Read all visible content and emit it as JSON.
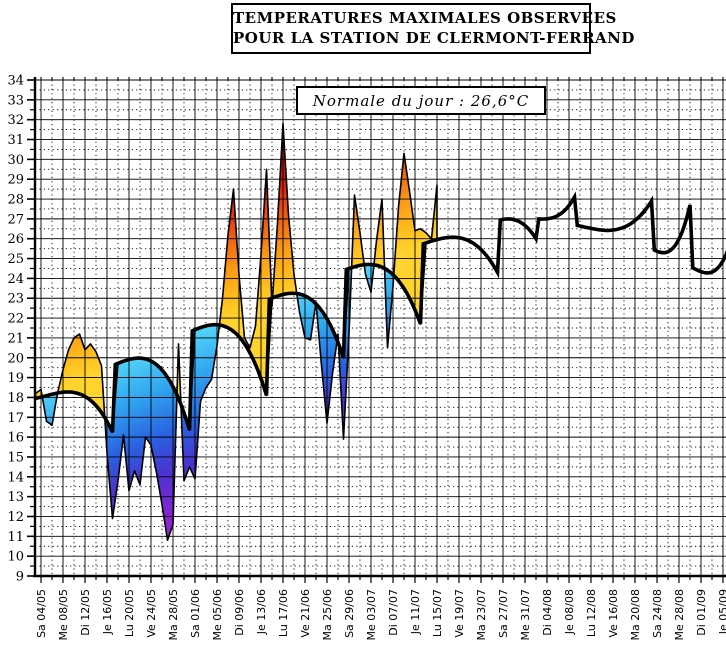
{
  "title": {
    "line1": "TEMPERATURES MAXIMALES OBSERVEES",
    "line2": "POUR LA STATION DE CLERMONT-FERRAND"
  },
  "annotation": {
    "text": "Normale du jour : 26,6°C"
  },
  "chart_data": {
    "type": "area",
    "title": "TEMPERATURES MAXIMALES OBSERVEES POUR LA STATION DE CLERMONT-FERRAND",
    "ylim": [
      9,
      34
    ],
    "grid": "on",
    "normale_du_jour_c": 26.6,
    "y_axis": {
      "tick_labels": [
        "34",
        "33",
        "32",
        "31",
        "30",
        "29",
        "28",
        "27",
        "26",
        "25",
        "24",
        "23",
        "22",
        "21",
        "20",
        "19",
        "18",
        "17",
        "16",
        "15",
        "14",
        "13",
        "12",
        "11",
        "10",
        "9"
      ],
      "tick_values": [
        34,
        33,
        32,
        31,
        30,
        29,
        28,
        27,
        26,
        25,
        24,
        23,
        22,
        21,
        20,
        19,
        18,
        17,
        16,
        15,
        14,
        13,
        12,
        11,
        10,
        9
      ]
    },
    "x_axis": {
      "tick_labels": [
        "Sa 04/05",
        "Me 08/05",
        "Di 12/05",
        "Je 16/05",
        "Lu 20/05",
        "Ve 24/05",
        "Ma 28/05",
        "Sa 01/06",
        "Me 05/06",
        "Di 09/06",
        "Je 13/06",
        "Lu 17/06",
        "Ve 21/06",
        "Ma 25/06",
        "Sa 29/06",
        "Me 03/07",
        "Di 07/07",
        "Je 11/07",
        "Lu 15/07",
        "Ve 19/07",
        "Ma 23/07",
        "Sa 27/07",
        "Me 31/07",
        "Di 04/08",
        "Je 08/08",
        "Lu 12/08",
        "Ve 16/08",
        "Ma 20/08",
        "Sa 24/08",
        "Me 28/08",
        "Di 01/09",
        "Je 05/09"
      ],
      "tick_day_indices": [
        1,
        5,
        9,
        13,
        17,
        21,
        25,
        29,
        33,
        37,
        41,
        45,
        49,
        53,
        57,
        61,
        65,
        69,
        73,
        77,
        81,
        85,
        89,
        93,
        97,
        101,
        105,
        109,
        113,
        117,
        121,
        125
      ],
      "range_start": "03/05",
      "range_end": "05/09"
    },
    "observed": {
      "name": "Temperature maximale observee",
      "start_date": "03/05",
      "cadence": "daily",
      "values": [
        18.2,
        18.4,
        16.8,
        16.6,
        18.2,
        19.4,
        20.4,
        21.0,
        21.2,
        20.4,
        20.7,
        20.3,
        19.6,
        15.2,
        11.9,
        13.8,
        16.1,
        13.3,
        14.3,
        13.6,
        16.0,
        15.6,
        14.2,
        12.6,
        10.8,
        11.6,
        20.7,
        13.8,
        14.5,
        13.9,
        17.8,
        18.5,
        18.9,
        20.6,
        23.0,
        26.2,
        28.5,
        24.2,
        21.0,
        20.5,
        21.6,
        25.2,
        29.5,
        22.6,
        26.8,
        31.8,
        27.2,
        24.2,
        22.3,
        21.0,
        20.9,
        22.8,
        19.6,
        16.7,
        19.2,
        21.2,
        15.9,
        21.2,
        28.2,
        26.3,
        24.2,
        23.3,
        25.9,
        28.0,
        20.5,
        23.6,
        27.6,
        30.3,
        28.4,
        26.4,
        26.5,
        26.3,
        26.0,
        28.7
      ]
    },
    "normal_curve": {
      "name": "Normale",
      "day_indices": [
        0,
        14,
        28,
        42,
        56,
        70,
        84,
        91,
        98,
        112,
        119,
        126
      ],
      "values": [
        17.95,
        19.6,
        21.3,
        22.9,
        24.4,
        25.7,
        26.9,
        27.0,
        26.7,
        25.5,
        24.6,
        23.6
      ]
    },
    "colors": {
      "background": "#ffffff",
      "line": "#000000",
      "normal_line": "#000000",
      "grid": "#000000",
      "warm_stops": [
        [
          0,
          "#FFD42E"
        ],
        [
          0.2,
          "#FFBB1C"
        ],
        [
          0.42,
          "#F99815"
        ],
        [
          0.64,
          "#F16212"
        ],
        [
          0.84,
          "#E2330D"
        ],
        [
          1,
          "#CE1310"
        ]
      ],
      "cool_stops": [
        [
          0,
          "#4FD0F7"
        ],
        [
          0.2,
          "#2FA3EF"
        ],
        [
          0.42,
          "#2961E0"
        ],
        [
          0.6,
          "#4A33CE"
        ],
        [
          0.78,
          "#7C27D4"
        ],
        [
          1,
          "#A81FD0"
        ]
      ]
    }
  }
}
